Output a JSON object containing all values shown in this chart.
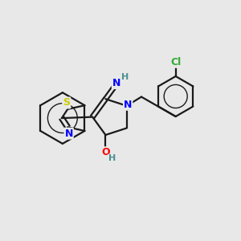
{
  "background_color": "#e8e8e8",
  "bond_color": "#1a1a1a",
  "atom_colors": {
    "S": "#cccc00",
    "N": "#0000ff",
    "O": "#ff0000",
    "Cl": "#33aa33",
    "H_grey": "#4a8f8f",
    "C": "#1a1a1a"
  },
  "figsize": [
    3.0,
    3.0
  ],
  "dpi": 100
}
